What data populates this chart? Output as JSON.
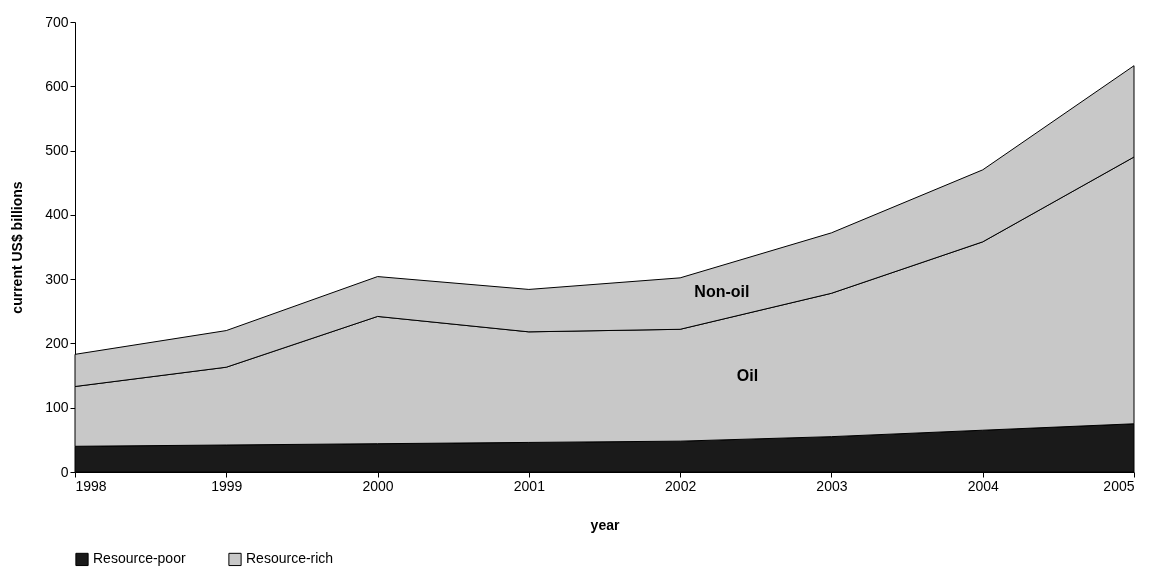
{
  "chart_data": {
    "type": "area",
    "stacked": true,
    "xlabel": "year",
    "ylabel": "current US$ billions",
    "x": [
      1998,
      1999,
      2000,
      2001,
      2002,
      2003,
      2004,
      2005
    ],
    "series": [
      {
        "name": "Resource-poor",
        "color": "#1a1a1a",
        "values": [
          40,
          42,
          44,
          46,
          48,
          55,
          65,
          75
        ]
      },
      {
        "name": "Resource-rich",
        "color": "#c8c8c8",
        "values": [
          93,
          121,
          198,
          172,
          174,
          223,
          293,
          415
        ]
      },
      {
        "color": "#c8c8c8",
        "values": [
          50,
          57,
          62,
          66,
          80,
          94,
          112,
          142
        ]
      }
    ],
    "annotations": [
      "Oil",
      "Non-oil"
    ],
    "xlim": [
      1998,
      2005
    ],
    "xticks": [
      1998,
      1999,
      2000,
      2001,
      2002,
      2003,
      2004,
      2005
    ],
    "ylim": [
      0,
      700
    ],
    "yticks": [
      0,
      100,
      200,
      300,
      400,
      500,
      600,
      700
    ],
    "grid": false,
    "legend": "bottom"
  }
}
